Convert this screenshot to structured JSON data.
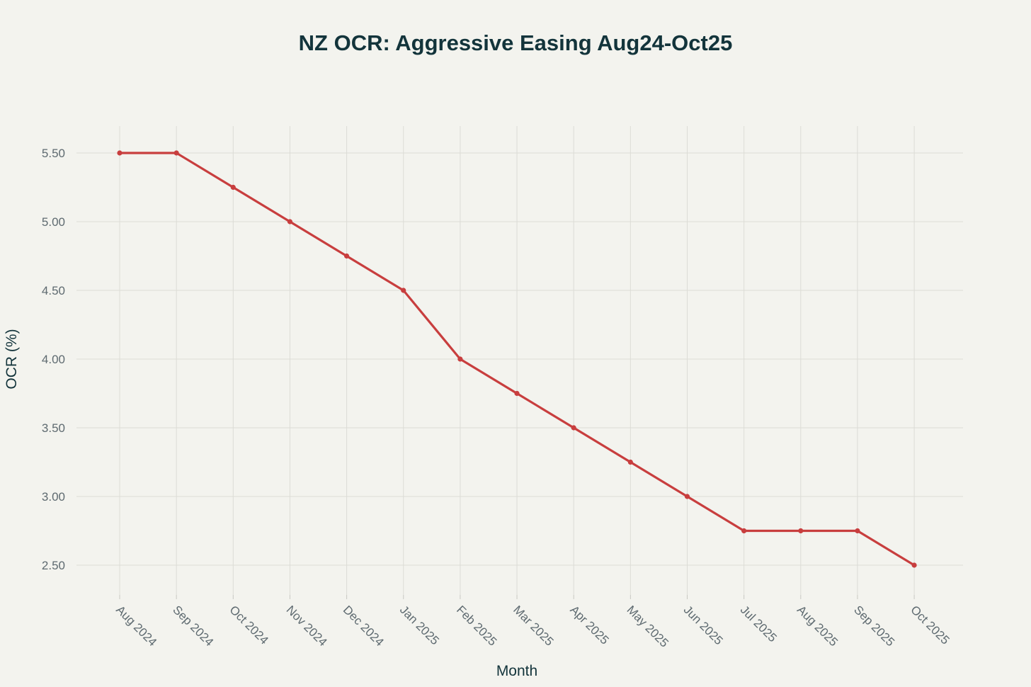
{
  "chart_data": {
    "type": "line",
    "title": "NZ OCR: Aggressive Easing Aug24-Oct25",
    "xlabel": "Month",
    "ylabel": "OCR (%)",
    "categories": [
      "Aug 2024",
      "Sep 2024",
      "Oct 2024",
      "Nov 2024",
      "Dec 2024",
      "Jan 2025",
      "Feb 2025",
      "Mar 2025",
      "Apr 2025",
      "May 2025",
      "Jun 2025",
      "Jul 2025",
      "Aug 2025",
      "Sep 2025",
      "Oct 2025"
    ],
    "series": [
      {
        "name": "OCR",
        "color": "#c83e3e",
        "values": [
          5.5,
          5.5,
          5.25,
          5.0,
          4.75,
          4.5,
          4.0,
          3.75,
          3.5,
          3.25,
          3.0,
          2.75,
          2.75,
          2.75,
          2.5
        ]
      }
    ],
    "ylim": [
      2.3,
      5.69
    ],
    "yticks": [
      2.5,
      3.0,
      3.5,
      4.0,
      4.5,
      5.0,
      5.5
    ],
    "ytick_labels": [
      "2.50",
      "3.00",
      "3.50",
      "4.00",
      "4.50",
      "5.00",
      "5.50"
    ],
    "grid": true,
    "legend": "none"
  }
}
